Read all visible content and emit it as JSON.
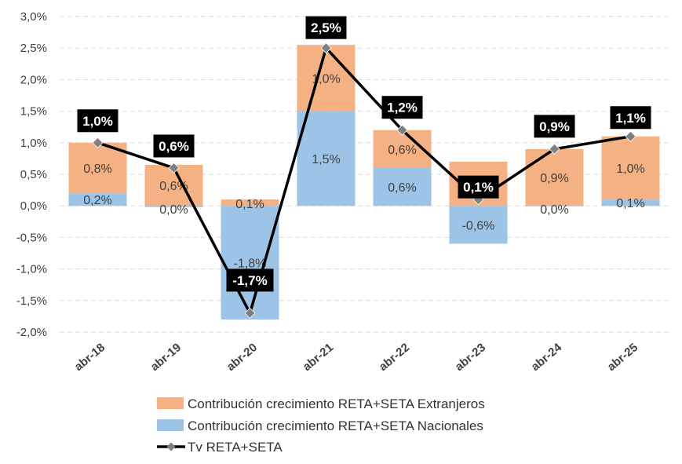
{
  "chart_data": {
    "type": "bar",
    "stacked": true,
    "categories": [
      "abr-18",
      "abr-19",
      "abr-20",
      "abr-21",
      "abr-22",
      "abr-23",
      "abr-24",
      "abr-25"
    ],
    "series": [
      {
        "name": "Contribución crecimiento RETA+SETA Nacionales",
        "kind": "bar",
        "color": "#9dc3e6",
        "values": [
          0.2,
          -0.02,
          -1.8,
          1.5,
          0.6,
          -0.6,
          0.0,
          0.1
        ],
        "labels": [
          "0,2%",
          "0,0%",
          "-1,8%",
          "1,5%",
          "0,6%",
          "-0,6%",
          "0,0%",
          "0,1%"
        ]
      },
      {
        "name": "Contribución crecimiento RETA+SETA Extranjeros",
        "kind": "bar",
        "color": "#f4b183",
        "values": [
          0.8,
          0.65,
          0.1,
          1.05,
          0.6,
          0.7,
          0.9,
          1.0
        ],
        "labels": [
          "0,8%",
          "0,6%",
          "0,1%",
          "1,0%",
          "0,6%",
          "0,7%",
          "0,9%",
          "1,0%"
        ]
      },
      {
        "name": "Tv RETA+SETA",
        "kind": "line",
        "color": "#000000",
        "marker_color": "#7f7f7f",
        "values": [
          1.0,
          0.6,
          -1.7,
          2.5,
          1.2,
          0.1,
          0.9,
          1.1
        ],
        "labels": [
          "1,0%",
          "0,6%",
          "-1,7%",
          "2,5%",
          "1,2%",
          "0,1%",
          "0,9%",
          "1,1%"
        ]
      }
    ],
    "legend_order": [
      1,
      0,
      2
    ],
    "legend_position": "bottom",
    "ylim": [
      -2.0,
      3.0
    ],
    "yticks": [
      3.0,
      2.5,
      2.0,
      1.5,
      1.0,
      0.5,
      0.0,
      -0.5,
      -1.0,
      -1.5,
      -2.0
    ],
    "ytick_labels": [
      "3,0%",
      "2,5%",
      "2,0%",
      "1,5%",
      "1,0%",
      "0,5%",
      "0,0%",
      "-0,5%",
      "-1,0%",
      "-1,5%",
      "-2,0%"
    ],
    "grid": true,
    "x_tick_rotation": "diagonal"
  }
}
